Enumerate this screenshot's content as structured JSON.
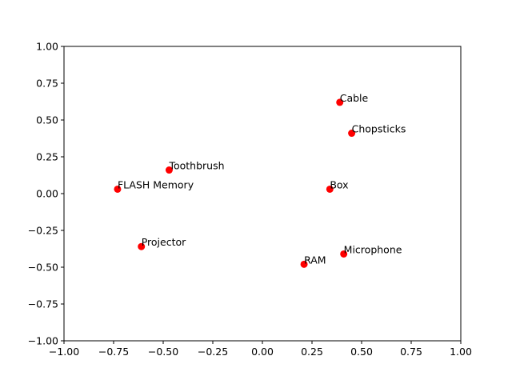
{
  "chart_data": {
    "type": "scatter",
    "xlim": [
      -1.0,
      1.0
    ],
    "ylim": [
      -1.0,
      1.0
    ],
    "xticks": [
      "−1.00",
      "−0.75",
      "−0.50",
      "−0.25",
      "0.00",
      "0.25",
      "0.50",
      "0.75",
      "1.00"
    ],
    "yticks": [
      "−1.00",
      "−0.75",
      "−0.50",
      "−0.25",
      "0.00",
      "0.25",
      "0.50",
      "0.75",
      "1.00"
    ],
    "xtick_values": [
      -1.0,
      -0.75,
      -0.5,
      -0.25,
      0.0,
      0.25,
      0.5,
      0.75,
      1.0
    ],
    "ytick_values": [
      -1.0,
      -0.75,
      -0.5,
      -0.25,
      0.0,
      0.25,
      0.5,
      0.75,
      1.0
    ],
    "grid": false,
    "marker_color": "#ff0000",
    "points": [
      {
        "label": "Cable",
        "x": 0.39,
        "y": 0.62
      },
      {
        "label": "Chopsticks",
        "x": 0.45,
        "y": 0.41
      },
      {
        "label": "Toothbrush",
        "x": -0.47,
        "y": 0.16
      },
      {
        "label": "FLASH Memory",
        "x": -0.73,
        "y": 0.03
      },
      {
        "label": "Box",
        "x": 0.34,
        "y": 0.03
      },
      {
        "label": "Projector",
        "x": -0.61,
        "y": -0.36
      },
      {
        "label": "Microphone",
        "x": 0.41,
        "y": -0.41
      },
      {
        "label": "RAM",
        "x": 0.21,
        "y": -0.48
      }
    ]
  }
}
